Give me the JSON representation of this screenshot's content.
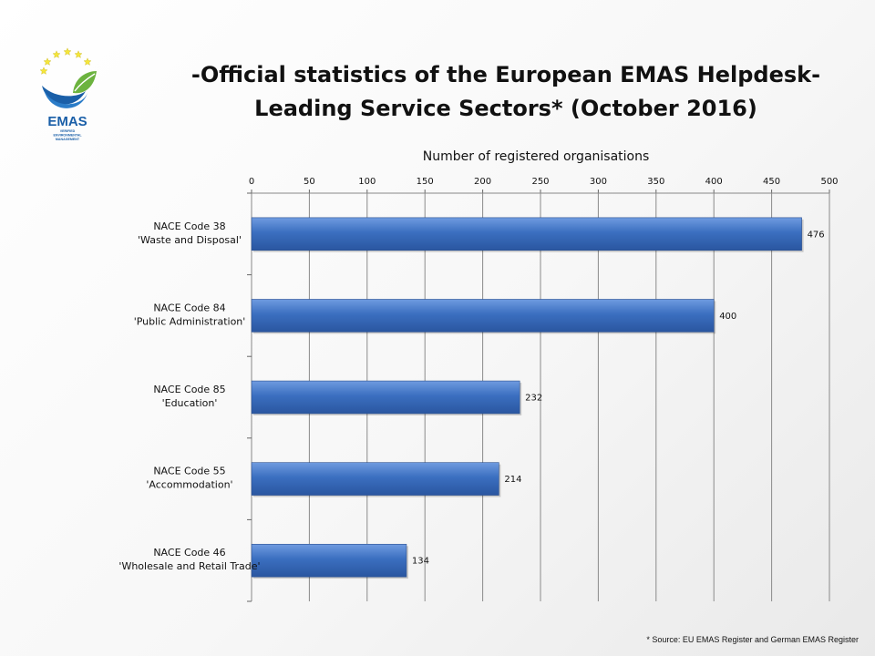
{
  "header": {
    "title_line1": "-Official statistics of the European EMAS Helpdesk-",
    "title_line2": "Leading Service Sectors* (October 2016)"
  },
  "logo": {
    "name": "EMAS",
    "tagline_lines": [
      "VERIFIED",
      "ENVIRONMENTAL",
      "MANAGEMENT"
    ],
    "colors": {
      "star": "#f5e63b",
      "blue": "#1a5fa8",
      "green": "#6cb33f"
    }
  },
  "chart_data": {
    "type": "bar",
    "orientation": "horizontal",
    "xlabel": "Number of registered organisations",
    "x_axis_position": "top",
    "xlim": [
      0,
      500
    ],
    "xticks": [
      0,
      50,
      100,
      150,
      200,
      250,
      300,
      350,
      400,
      450,
      500
    ],
    "grid": true,
    "legend": "none",
    "bar_color": "#3b6fc0",
    "categories": [
      [
        "NACE Code 38",
        "'Waste and Disposal'"
      ],
      [
        "NACE Code 84",
        "'Public Administration'"
      ],
      [
        "NACE Code 85",
        "'Education'"
      ],
      [
        "NACE Code 55",
        "'Accommodation'"
      ],
      [
        "NACE Code 46",
        "'Wholesale and Retail Trade'"
      ]
    ],
    "values": [
      476,
      400,
      232,
      214,
      134
    ]
  },
  "footnote": "* Source: EU EMAS Register and German EMAS Register"
}
